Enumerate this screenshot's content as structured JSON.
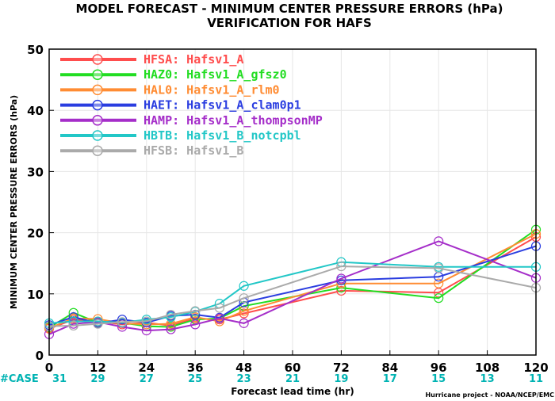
{
  "chart_data": {
    "type": "line",
    "title_line1": "MODEL FORECAST - MINIMUM CENTER PRESSURE ERRORS (hPa)",
    "title_line2": "VERIFICATION FOR HAFS",
    "ylabel": "MINIMUM CENTER PRESSURE ERRORS (hPa)",
    "xlabel": "Forecast lead time (hr)",
    "credit": "Hurricane project - NOAA/NCEP/EMC",
    "xlim": [
      0,
      120
    ],
    "ylim": [
      0,
      50
    ],
    "x_ticks": [
      0,
      12,
      24,
      36,
      48,
      60,
      72,
      84,
      96,
      108,
      120
    ],
    "y_ticks": [
      0,
      10,
      20,
      30,
      40,
      50
    ],
    "case_label": "#CASE",
    "case_counts": [
      31,
      29,
      27,
      25,
      23,
      21,
      19,
      17,
      15,
      13,
      11
    ],
    "x": [
      0,
      6,
      12,
      18,
      24,
      30,
      36,
      42,
      48,
      72,
      96,
      120
    ],
    "legend_placement": "top-left",
    "series": [
      {
        "name": "HFSA:  Hafsv1_A",
        "color": "#ff4d4d",
        "values": [
          4.3,
          5.8,
          5.5,
          5.0,
          5.3,
          4.8,
          6.0,
          5.8,
          6.8,
          10.5,
          10.2,
          19.3
        ]
      },
      {
        "name": "HAZ0:  Hafsv1_A_gfsz0",
        "color": "#22dd22",
        "values": [
          4.5,
          6.9,
          5.3,
          5.3,
          4.7,
          4.6,
          5.8,
          6.0,
          8.0,
          11.0,
          9.3,
          20.5
        ]
      },
      {
        "name": "HAL0:  Hafsv1_A_rlm0",
        "color": "#ff8c33",
        "values": [
          4.4,
          6.0,
          5.9,
          5.2,
          5.0,
          5.1,
          6.2,
          5.5,
          7.2,
          11.7,
          11.7,
          19.8
        ]
      },
      {
        "name": "HAET:  Hafsv1_A_clam0p1",
        "color": "#2a3de0",
        "values": [
          4.9,
          6.2,
          5.2,
          5.8,
          5.3,
          6.4,
          6.6,
          6.1,
          8.6,
          12.2,
          12.8,
          17.8
        ]
      },
      {
        "name": "HAMP:  Hafsv1_A_thompsonMP",
        "color": "#a52ec9",
        "values": [
          3.4,
          5.1,
          5.4,
          4.6,
          4.0,
          4.2,
          5.0,
          6.0,
          5.2,
          12.5,
          18.6,
          12.6
        ]
      },
      {
        "name": "HBTB:  Hafsv1_B_notcpbl",
        "color": "#22c7c7",
        "values": [
          5.2,
          5.5,
          5.5,
          5.3,
          5.8,
          6.2,
          7.1,
          8.4,
          11.3,
          15.2,
          14.4,
          14.4
        ]
      },
      {
        "name": "HFSB:  Hafsv1_B",
        "color": "#aaaaaa",
        "values": [
          4.7,
          4.8,
          5.1,
          5.4,
          5.5,
          6.6,
          7.2,
          7.7,
          9.3,
          14.5,
          14.2,
          11.0
        ]
      }
    ]
  }
}
